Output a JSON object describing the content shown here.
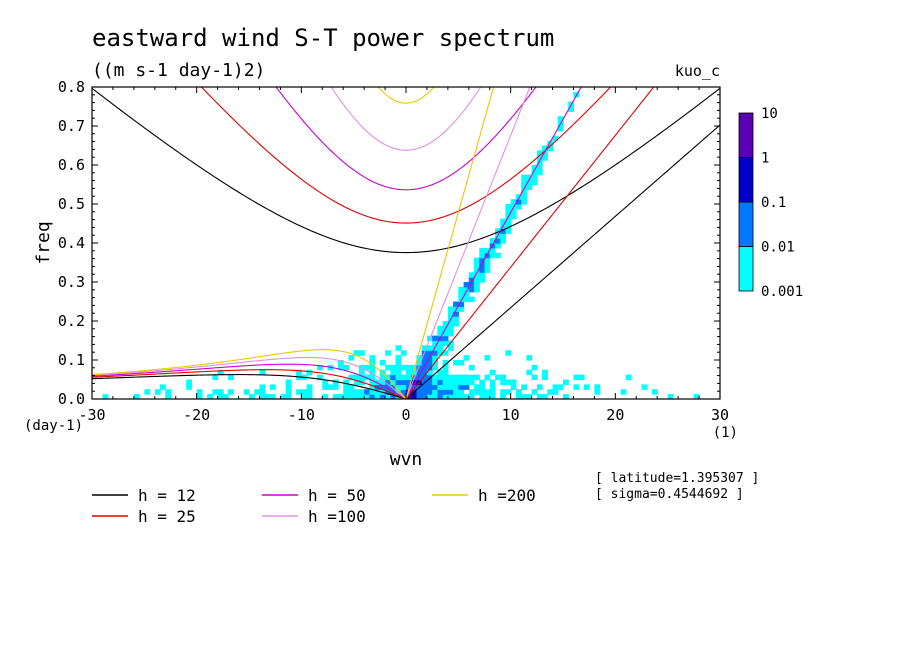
{
  "chart_data": {
    "type": "heatmap",
    "title": "eastward wind S-T power spectrum",
    "subtitle": "((m s-1 day-1)2)",
    "tag": "kuo_c",
    "xlabel": "wvn",
    "ylabel": "freq",
    "x_unit": "(1)",
    "y_unit": "(day-1)",
    "xlim": [
      -30,
      30
    ],
    "ylim": [
      0,
      0.8
    ],
    "x_ticks": [
      "-30",
      "-20",
      "-10",
      "0",
      "10",
      "20",
      "30"
    ],
    "y_ticks": [
      "0.0",
      "0.1",
      "0.2",
      "0.3",
      "0.4",
      "0.5",
      "0.6",
      "0.7",
      "0.8"
    ],
    "colorbar": {
      "levels": [
        "0.001",
        "0.01",
        "0.1",
        "1",
        "10"
      ],
      "colors": [
        "#00ffff",
        "#0078ff",
        "#0000c8",
        "#5a00b4"
      ]
    },
    "info": [
      "[ latitude=1.395307 ]",
      "[ sigma=0.4544692 ]"
    ],
    "legend": [
      {
        "label": "h = 12",
        "color": "#000000",
        "h": 12
      },
      {
        "label": "h = 25",
        "color": "#e00000",
        "h": 25
      },
      {
        "label": "h = 50",
        "color": "#cc00cc",
        "h": 50
      },
      {
        "label": "h =100",
        "color": "#e090e0",
        "h": 100
      },
      {
        "label": "h =200",
        "color": "#e8c800",
        "h": 200
      }
    ]
  }
}
